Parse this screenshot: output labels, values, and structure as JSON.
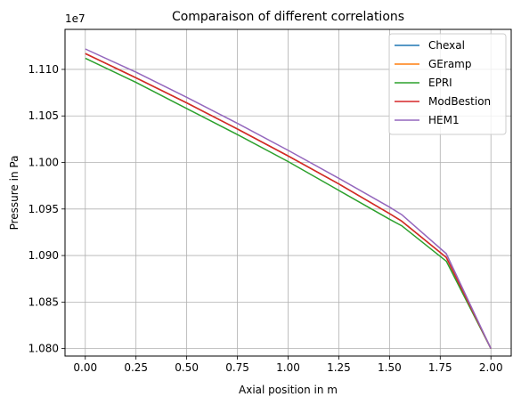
{
  "chart_data": {
    "type": "line",
    "title": "Comparaison of different correlations",
    "xlabel": "Axial position in m",
    "ylabel": "Pressure in Pa",
    "y_offset_label": "1e7",
    "xlim": [
      -0.1,
      2.1
    ],
    "ylim": [
      10792000.0,
      11143000.0
    ],
    "grid": true,
    "legend_position": "top-right",
    "x_ticks": [
      0.0,
      0.25,
      0.5,
      0.75,
      1.0,
      1.25,
      1.5,
      1.75,
      2.0
    ],
    "x_tick_labels": [
      "0.00",
      "0.25",
      "0.50",
      "0.75",
      "1.00",
      "1.25",
      "1.50",
      "1.75",
      "2.00"
    ],
    "y_ticks": [
      10800000,
      10850000,
      10900000,
      10950000,
      11000000,
      11050000,
      11100000
    ],
    "y_tick_labels": [
      "1.080",
      "1.085",
      "1.090",
      "1.095",
      "1.100",
      "1.105",
      "1.110"
    ],
    "x": [
      0.0,
      0.25,
      0.5,
      0.75,
      1.0,
      1.25,
      1.5,
      1.56,
      1.78,
      2.0
    ],
    "series": [
      {
        "name": "Chexal",
        "color": "#1f77b4",
        "values": [
          11117000,
          11091000,
          11064000,
          11036000,
          11007000,
          10977000,
          10945000,
          10937000,
          10898000,
          10800000
        ]
      },
      {
        "name": "GEramp",
        "color": "#ff7f0e",
        "values": [
          11117000,
          11091000,
          11064000,
          11036000,
          11007000,
          10977000,
          10945000,
          10937000,
          10898000,
          10800000
        ]
      },
      {
        "name": "EPRI",
        "color": "#2ca02c",
        "values": [
          11112000,
          11086000,
          11058000,
          11030000,
          11001000,
          10970000,
          10939000,
          10932000,
          10894000,
          10800000
        ]
      },
      {
        "name": "ModBestion",
        "color": "#d62728",
        "values": [
          11117000,
          11091000,
          11064000,
          11036000,
          11007000,
          10977000,
          10945000,
          10937000,
          10898000,
          10800000
        ]
      },
      {
        "name": "HEM1",
        "color": "#9467bd",
        "values": [
          11122000,
          11097000,
          11070000,
          11042000,
          11013000,
          10983000,
          10952000,
          10944000,
          10902000,
          10800000
        ]
      }
    ]
  }
}
